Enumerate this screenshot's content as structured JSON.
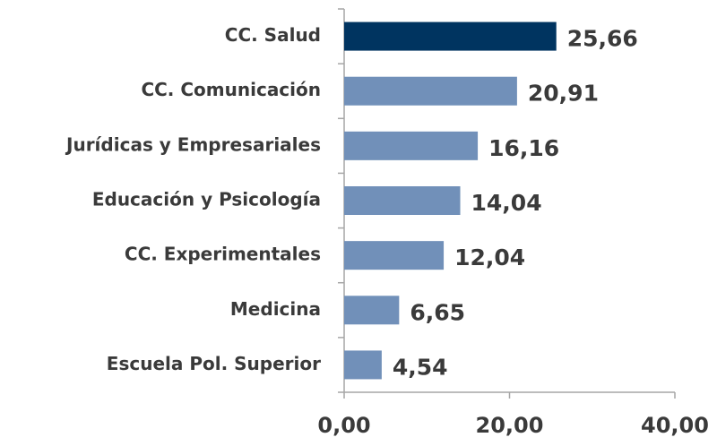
{
  "chart_data": {
    "type": "bar",
    "orientation": "horizontal",
    "categories": [
      "CC. Salud",
      "CC. Comunicación",
      "Jurídicas y Empresariales",
      "Educación y Psicología",
      "CC. Experimentales",
      "Medicina",
      "Escuela Pol. Superior"
    ],
    "values": [
      25.66,
      20.91,
      16.16,
      14.04,
      12.04,
      6.65,
      4.54
    ],
    "value_labels": [
      "25,66",
      "20,91",
      "16,16",
      "14,04",
      "12,04",
      "6,65",
      "4,54"
    ],
    "colors": [
      "#003460",
      "#7190b9",
      "#7190b9",
      "#7190b9",
      "#7190b9",
      "#7190b9",
      "#7190b9"
    ],
    "xlim": [
      0,
      40
    ],
    "xticks": [
      {
        "value": 0,
        "label": "0,00"
      },
      {
        "value": 20,
        "label": "20,00"
      },
      {
        "value": 40,
        "label": "40,00"
      }
    ],
    "grid": false
  }
}
